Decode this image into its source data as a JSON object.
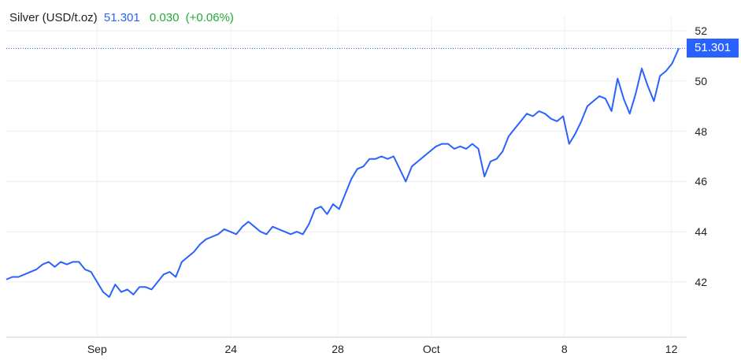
{
  "header": {
    "instrument": "Silver (USD/t.oz)",
    "price": "51.301",
    "change": "0.030",
    "change_pct": "(+0.06%)"
  },
  "price_tag": "51.301",
  "colors": {
    "line": "#2962ff",
    "positive": "#22ab33",
    "grid": "#e8e8e8",
    "last_price_line": "#2962ff"
  },
  "chart_data": {
    "type": "line",
    "title": "",
    "xlabel": "",
    "ylabel": "",
    "ylim": [
      39.8,
      52.6
    ],
    "yticks": [
      42,
      44,
      46,
      48,
      50,
      52
    ],
    "xticks": [
      "Sep",
      "24",
      "28",
      "Oct",
      "8",
      "12"
    ],
    "xlim": [
      0,
      1
    ],
    "grid": true,
    "last_value": 51.301,
    "series": [
      {
        "name": "",
        "x": [
          0,
          0.009,
          0.018,
          0.027,
          0.036,
          0.045,
          0.054,
          0.063,
          0.072,
          0.081,
          0.09,
          0.099,
          0.108,
          0.117,
          0.126,
          0.135,
          0.144,
          0.153,
          0.162,
          0.171,
          0.18,
          0.189,
          0.198,
          0.207,
          0.216,
          0.225,
          0.234,
          0.243,
          0.252,
          0.261,
          0.27,
          0.279,
          0.288,
          0.297,
          0.306,
          0.315,
          0.324,
          0.333,
          0.342,
          0.351,
          0.36,
          0.369,
          0.378,
          0.387,
          0.396,
          0.405,
          0.414,
          0.423,
          0.432,
          0.441,
          0.45,
          0.459,
          0.468,
          0.477,
          0.486,
          0.495,
          0.504,
          0.513,
          0.522,
          0.531,
          0.54,
          0.549,
          0.558,
          0.567,
          0.576,
          0.585,
          0.594,
          0.603,
          0.612,
          0.621,
          0.63,
          0.639,
          0.648,
          0.657,
          0.666,
          0.675,
          0.684,
          0.693,
          0.702,
          0.711,
          0.72,
          0.729,
          0.738,
          0.747,
          0.756,
          0.765,
          0.774,
          0.783,
          0.792,
          0.801,
          0.81,
          0.819,
          0.828,
          0.837,
          0.846,
          0.855,
          0.864,
          0.873,
          0.882,
          0.891,
          0.9,
          0.909,
          0.918,
          0.927,
          0.936,
          0.945,
          0.954,
          0.963,
          0.972,
          0.981,
          0.99,
          1
        ],
        "y": [
          42.1,
          42.2,
          42.2,
          42.3,
          42.4,
          42.5,
          42.7,
          42.8,
          42.6,
          42.8,
          42.7,
          42.8,
          42.8,
          42.5,
          42.4,
          42.0,
          41.6,
          41.4,
          41.9,
          41.6,
          41.7,
          41.5,
          41.8,
          41.8,
          41.7,
          42.0,
          42.3,
          42.4,
          42.2,
          42.8,
          43.0,
          43.2,
          43.5,
          43.7,
          43.8,
          43.9,
          44.1,
          44.0,
          43.9,
          44.2,
          44.4,
          44.2,
          44.0,
          43.9,
          44.2,
          44.1,
          44.0,
          43.9,
          44.0,
          43.9,
          44.3,
          44.9,
          45.0,
          44.7,
          45.1,
          44.9,
          45.5,
          46.1,
          46.5,
          46.6,
          46.9,
          46.9,
          47.0,
          46.9,
          47.0,
          46.5,
          46.0,
          46.6,
          46.8,
          47.0,
          47.2,
          47.4,
          47.5,
          47.5,
          47.3,
          47.4,
          47.3,
          47.5,
          47.3,
          46.2,
          46.8,
          46.9,
          47.2,
          47.8,
          48.1,
          48.4,
          48.7,
          48.6,
          48.8,
          48.7,
          48.5,
          48.4,
          48.6,
          47.5,
          47.9,
          48.4,
          49.0,
          49.2,
          49.4,
          49.3,
          48.8,
          50.1,
          49.3,
          48.7,
          49.5,
          50.5,
          49.8,
          49.2,
          50.2,
          50.4,
          50.7,
          51.3
        ]
      }
    ]
  }
}
